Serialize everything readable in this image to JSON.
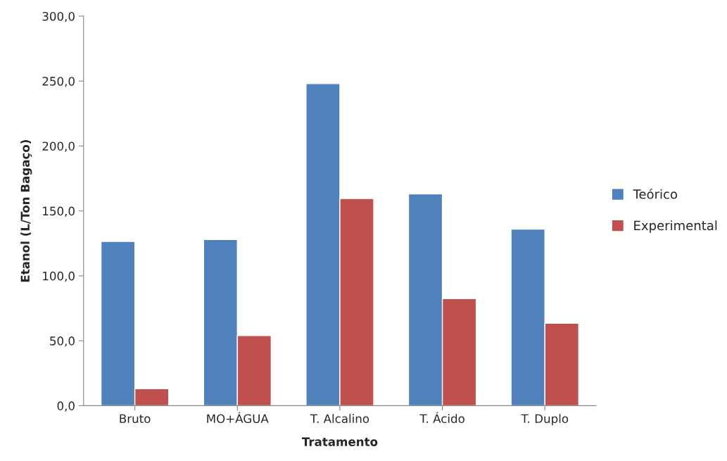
{
  "chart_data": {
    "type": "bar",
    "xlabel": "Tratamento",
    "ylabel": "Etanol (L/Ton Bagaço)",
    "categories": [
      "Bruto",
      "MO+ÁGUA",
      "T. Alcalino",
      "T. Ácido",
      "T. Duplo"
    ],
    "series": [
      {
        "name": "Teórico",
        "color": "#4f81bd",
        "values": [
          126.5,
          128,
          248,
          163,
          136
        ]
      },
      {
        "name": "Experimental",
        "color": "#c0504d",
        "values": [
          13,
          54,
          159.5,
          82.5,
          63.5
        ]
      }
    ],
    "ylim": [
      0,
      300
    ],
    "yticks": [
      {
        "value": 0,
        "label": "0,0"
      },
      {
        "value": 50,
        "label": "50,0"
      },
      {
        "value": 100,
        "label": "100,0"
      },
      {
        "value": 150,
        "label": "150,0"
      },
      {
        "value": 200,
        "label": "200,0"
      },
      {
        "value": 250,
        "label": "250,0"
      },
      {
        "value": 300,
        "label": "300,0"
      }
    ],
    "grid": false,
    "legend": "right"
  }
}
